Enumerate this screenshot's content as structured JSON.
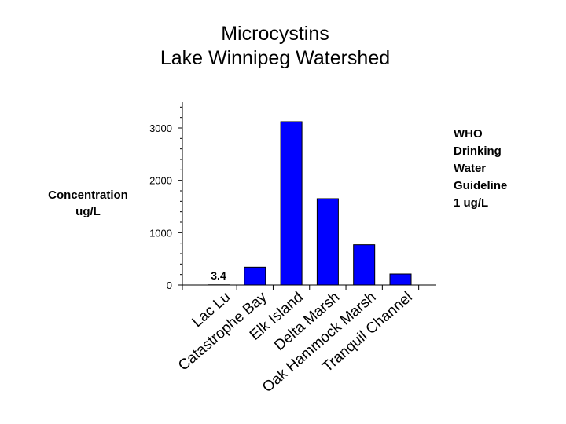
{
  "chart_data": {
    "type": "bar",
    "title": [
      "Microcystins",
      "Lake Winnipeg Watershed"
    ],
    "ylabel": [
      "Concentration",
      "ug/L"
    ],
    "xlabel": "",
    "categories": [
      "Lac Lu",
      "Catastrophe Bay",
      "Elk Island",
      "Delta Marsh",
      "Oak Hammock Marsh",
      "Tranquil Channel"
    ],
    "values": [
      3.4,
      340,
      3120,
      1650,
      770,
      210
    ],
    "data_labels": [
      {
        "category": "Lac Lu",
        "text": "3.4"
      }
    ],
    "yticks": [
      0,
      1000,
      2000,
      3000
    ],
    "ylim": [
      0,
      3500
    ],
    "grid": false,
    "bar_color": "#0000ff",
    "annotation": [
      "WHO",
      "Drinking",
      "Water",
      "Guideline",
      "1 ug/L"
    ]
  }
}
